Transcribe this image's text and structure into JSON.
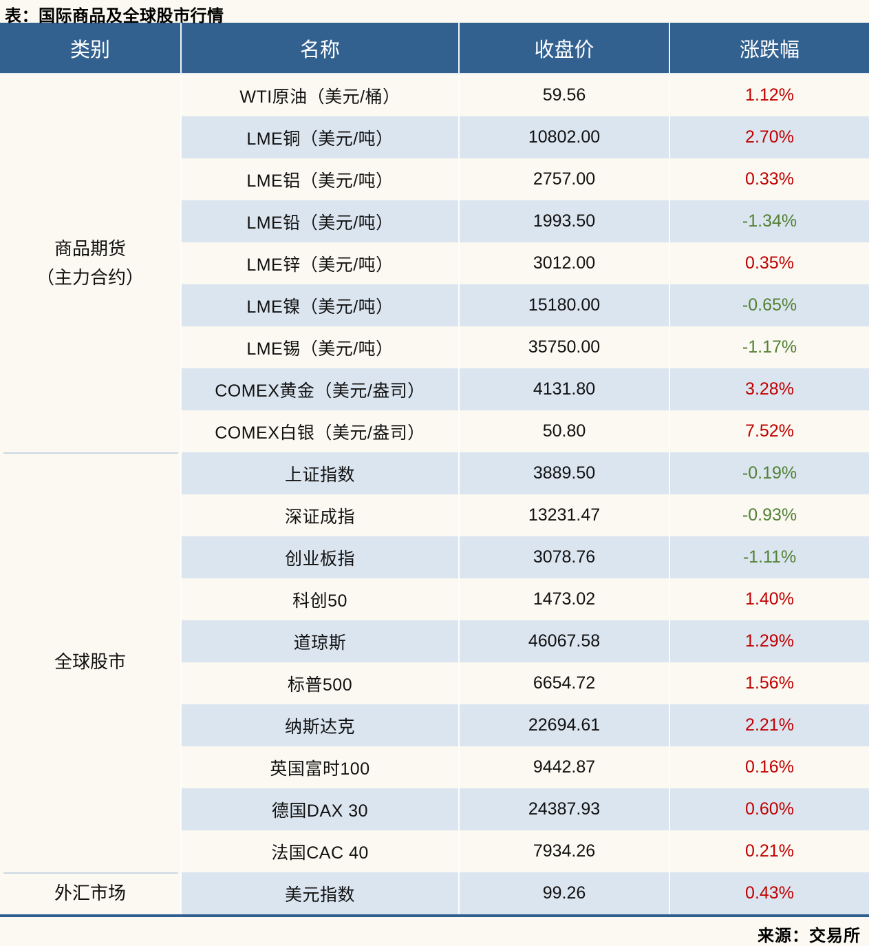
{
  "title": "表：国际商品及全球股市行情",
  "source": "来源：交易所",
  "columns": [
    "类别",
    "名称",
    "收盘价",
    "涨跌幅"
  ],
  "colors": {
    "header_bg": "#33618f",
    "band_bg": "#dbe5f0",
    "page_bg": "#fbf9f1",
    "up": "#c00000",
    "down": "#538135",
    "bottom_rule": "#2e5f8e"
  },
  "sections": [
    {
      "category": "商品期货\n（主力合约）",
      "rows": [
        {
          "name": "WTI原油（美元/桶）",
          "close": "59.56",
          "change": "1.12%"
        },
        {
          "name": "LME铜（美元/吨）",
          "close": "10802.00",
          "change": "2.70%"
        },
        {
          "name": "LME铝（美元/吨）",
          "close": "2757.00",
          "change": "0.33%"
        },
        {
          "name": "LME铅（美元/吨）",
          "close": "1993.50",
          "change": "-1.34%"
        },
        {
          "name": "LME锌（美元/吨）",
          "close": "3012.00",
          "change": "0.35%"
        },
        {
          "name": "LME镍（美元/吨）",
          "close": "15180.00",
          "change": "-0.65%"
        },
        {
          "name": "LME锡（美元/吨）",
          "close": "35750.00",
          "change": "-1.17%"
        },
        {
          "name": "COMEX黄金（美元/盎司）",
          "close": "4131.80",
          "change": "3.28%"
        },
        {
          "name": "COMEX白银（美元/盎司）",
          "close": "50.80",
          "change": "7.52%"
        }
      ]
    },
    {
      "category": "全球股市",
      "rows": [
        {
          "name": "上证指数",
          "close": "3889.50",
          "change": "-0.19%"
        },
        {
          "name": "深证成指",
          "close": "13231.47",
          "change": "-0.93%"
        },
        {
          "name": "创业板指",
          "close": "3078.76",
          "change": "-1.11%"
        },
        {
          "name": "科创50",
          "close": "1473.02",
          "change": "1.40%"
        },
        {
          "name": "道琼斯",
          "close": "46067.58",
          "change": "1.29%"
        },
        {
          "name": "标普500",
          "close": "6654.72",
          "change": "1.56%"
        },
        {
          "name": "纳斯达克",
          "close": "22694.61",
          "change": "2.21%"
        },
        {
          "name": "英国富时100",
          "close": "9442.87",
          "change": "0.16%"
        },
        {
          "name": "德国DAX 30",
          "close": "24387.93",
          "change": "0.60%"
        },
        {
          "name": "法国CAC 40",
          "close": "7934.26",
          "change": "0.21%"
        }
      ]
    },
    {
      "category": "外汇市场",
      "rows": [
        {
          "name": "美元指数",
          "close": "99.26",
          "change": "0.43%"
        }
      ]
    }
  ],
  "chart_data": {
    "type": "table",
    "title": "表：国际商品及全球股市行情",
    "columns": [
      "类别",
      "名称",
      "收盘价",
      "涨跌幅"
    ],
    "rows": [
      [
        "商品期货（主力合约）",
        "WTI原油（美元/桶）",
        59.56,
        "1.12%"
      ],
      [
        "商品期货（主力合约）",
        "LME铜（美元/吨）",
        10802.0,
        "2.70%"
      ],
      [
        "商品期货（主力合约）",
        "LME铝（美元/吨）",
        2757.0,
        "0.33%"
      ],
      [
        "商品期货（主力合约）",
        "LME铅（美元/吨）",
        1993.5,
        "-1.34%"
      ],
      [
        "商品期货（主力合约）",
        "LME锌（美元/吨）",
        3012.0,
        "0.35%"
      ],
      [
        "商品期货（主力合约）",
        "LME镍（美元/吨）",
        15180.0,
        "-0.65%"
      ],
      [
        "商品期货（主力合约）",
        "LME锡（美元/吨）",
        35750.0,
        "-1.17%"
      ],
      [
        "商品期货（主力合约）",
        "COMEX黄金（美元/盎司）",
        4131.8,
        "3.28%"
      ],
      [
        "商品期货（主力合约）",
        "COMEX白银（美元/盎司）",
        50.8,
        "7.52%"
      ],
      [
        "全球股市",
        "上证指数",
        3889.5,
        "-0.19%"
      ],
      [
        "全球股市",
        "深证成指",
        13231.47,
        "-0.93%"
      ],
      [
        "全球股市",
        "创业板指",
        3078.76,
        "-1.11%"
      ],
      [
        "全球股市",
        "科创50",
        1473.02,
        "1.40%"
      ],
      [
        "全球股市",
        "道琼斯",
        46067.58,
        "1.29%"
      ],
      [
        "全球股市",
        "标普500",
        6654.72,
        "1.56%"
      ],
      [
        "全球股市",
        "纳斯达克",
        22694.61,
        "2.21%"
      ],
      [
        "全球股市",
        "英国富时100",
        9442.87,
        "0.16%"
      ],
      [
        "全球股市",
        "德国DAX 30",
        24387.93,
        "0.60%"
      ],
      [
        "全球股市",
        "法国CAC 40",
        7934.26,
        "0.21%"
      ],
      [
        "外汇市场",
        "美元指数",
        99.26,
        "0.43%"
      ]
    ],
    "notes": "涨跌幅红色=上涨(#c00000)，绿色=下跌(#538135)；来源：交易所"
  }
}
